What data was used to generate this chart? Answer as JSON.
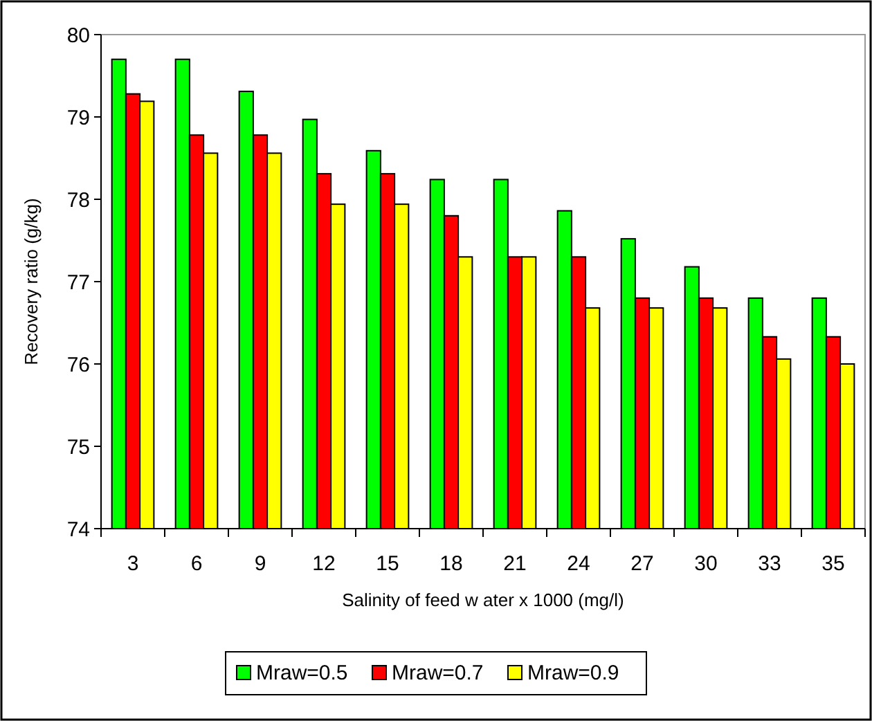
{
  "chart_data": {
    "type": "bar",
    "xlabel": "Salinity of feed w ater x 1000 (mg/l)",
    "ylabel": "Recovery ratio (g/kg)",
    "categories": [
      "3",
      "6",
      "9",
      "12",
      "15",
      "18",
      "21",
      "24",
      "27",
      "30",
      "33",
      "35"
    ],
    "series": [
      {
        "name": "Mraw=0.5",
        "color": "#00ff00",
        "values": [
          79.7,
          79.7,
          79.31,
          78.97,
          78.59,
          78.24,
          78.24,
          77.86,
          77.52,
          77.18,
          76.8,
          76.8
        ]
      },
      {
        "name": "Mraw=0.7",
        "color": "#ff0000",
        "values": [
          79.28,
          78.78,
          78.78,
          78.31,
          78.31,
          77.8,
          77.3,
          77.3,
          76.8,
          76.8,
          76.33,
          76.33
        ]
      },
      {
        "name": "Mraw=0.9",
        "color": "#ffff00",
        "values": [
          79.19,
          78.56,
          78.56,
          77.94,
          77.94,
          77.3,
          77.3,
          76.68,
          76.68,
          76.68,
          76.06,
          76.0
        ]
      }
    ],
    "ylim": [
      74,
      80
    ],
    "yticks": [
      74,
      75,
      76,
      77,
      78,
      79,
      80
    ],
    "legend": "bottom"
  }
}
